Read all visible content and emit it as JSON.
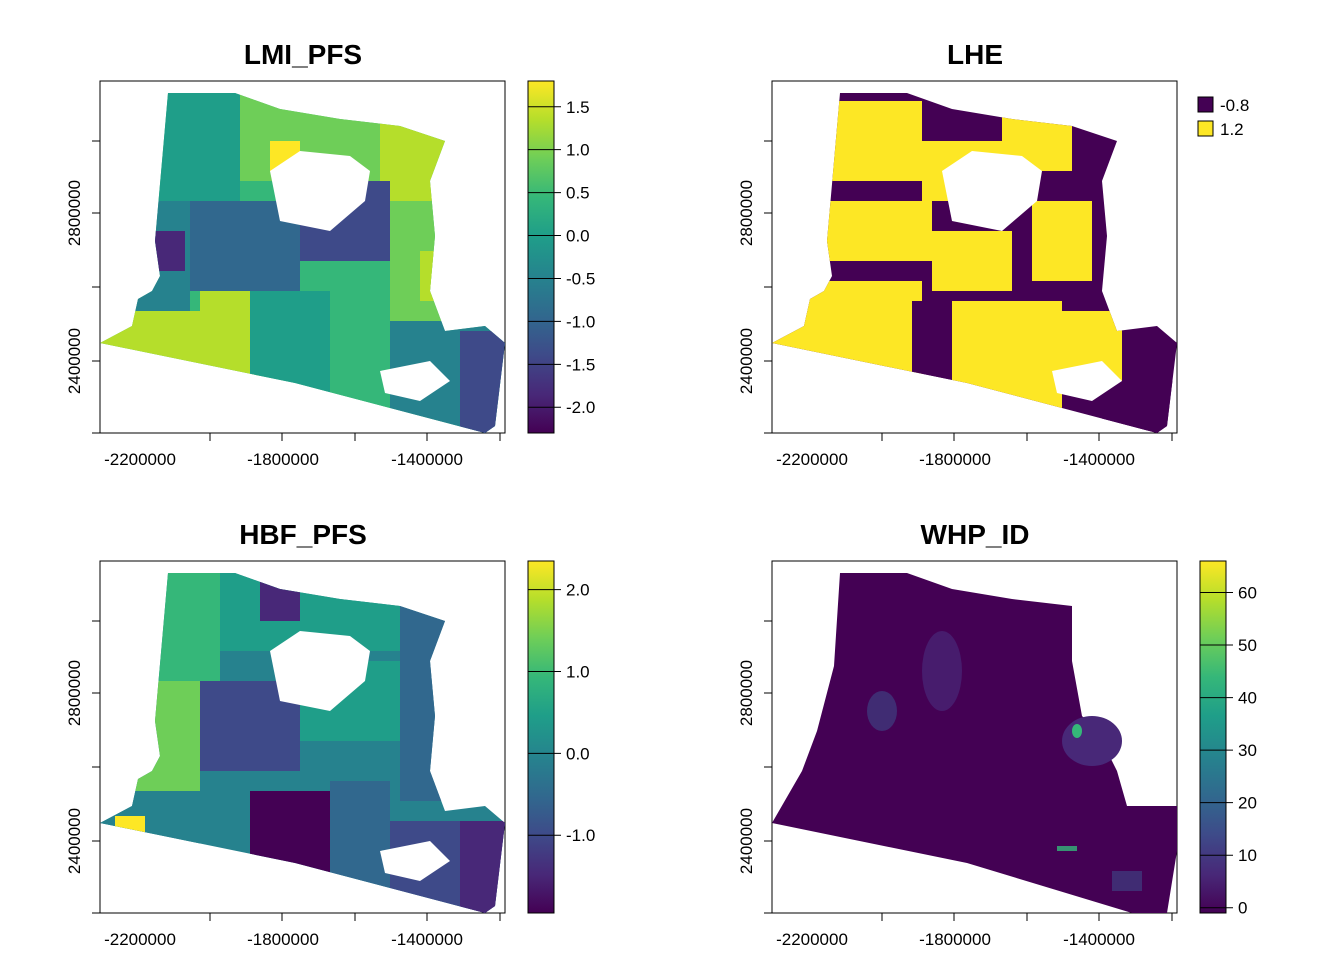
{
  "panels": {
    "lmi": {
      "title": "LMI_PFS",
      "x_ticks": [
        "-2200000",
        "-1800000",
        "-1400000"
      ],
      "y_ticks": [
        "2800000",
        "2400000"
      ],
      "legend_type": "continuous",
      "legend_range": [
        -2.3,
        1.8
      ],
      "legend_ticks": [
        {
          "value": 1.5,
          "label": "1.5"
        },
        {
          "value": 1.0,
          "label": "1.0"
        },
        {
          "value": 0.5,
          "label": "0.5"
        },
        {
          "value": 0.0,
          "label": "0.0"
        },
        {
          "value": -0.5,
          "label": "-0.5"
        },
        {
          "value": -1.0,
          "label": "-1.0"
        },
        {
          "value": -1.5,
          "label": "-1.5"
        },
        {
          "value": -2.0,
          "label": "-2.0"
        }
      ]
    },
    "lhe": {
      "title": "LHE",
      "x_ticks": [
        "-2200000",
        "-1800000",
        "-1400000"
      ],
      "y_ticks": [
        "2800000",
        "2400000"
      ],
      "legend_type": "categorical",
      "legend_items": [
        {
          "label": "-0.8",
          "color": "#440154"
        },
        {
          "label": "1.2",
          "color": "#fde725"
        }
      ]
    },
    "hbf": {
      "title": "HBF_PFS",
      "x_ticks": [
        "-2200000",
        "-1800000",
        "-1400000"
      ],
      "y_ticks": [
        "2800000",
        "2400000"
      ],
      "legend_type": "continuous",
      "legend_range": [
        -1.95,
        2.35
      ],
      "legend_ticks": [
        {
          "value": 2.0,
          "label": "2.0"
        },
        {
          "value": 1.0,
          "label": "1.0"
        },
        {
          "value": 0.0,
          "label": "0.0"
        },
        {
          "value": -1.0,
          "label": "-1.0"
        }
      ]
    },
    "whp": {
      "title": "WHP_ID",
      "x_ticks": [
        "-2200000",
        "-1800000",
        "-1400000"
      ],
      "y_ticks": [
        "2800000",
        "2400000"
      ],
      "legend_type": "continuous",
      "legend_range": [
        -1,
        66
      ],
      "legend_ticks": [
        {
          "value": 60,
          "label": "60"
        },
        {
          "value": 50,
          "label": "50"
        },
        {
          "value": 40,
          "label": "40"
        },
        {
          "value": 30,
          "label": "30"
        },
        {
          "value": 20,
          "label": "20"
        },
        {
          "value": 10,
          "label": "10"
        },
        {
          "value": 0,
          "label": "0"
        }
      ]
    }
  },
  "colors": {
    "palette": "viridis",
    "viridis": [
      "#440154",
      "#482878",
      "#3e4a89",
      "#31688e",
      "#26828e",
      "#1f9e89",
      "#35b779",
      "#6ece58",
      "#b5de2b",
      "#fde725"
    ],
    "no_data": "#ffffff"
  }
}
